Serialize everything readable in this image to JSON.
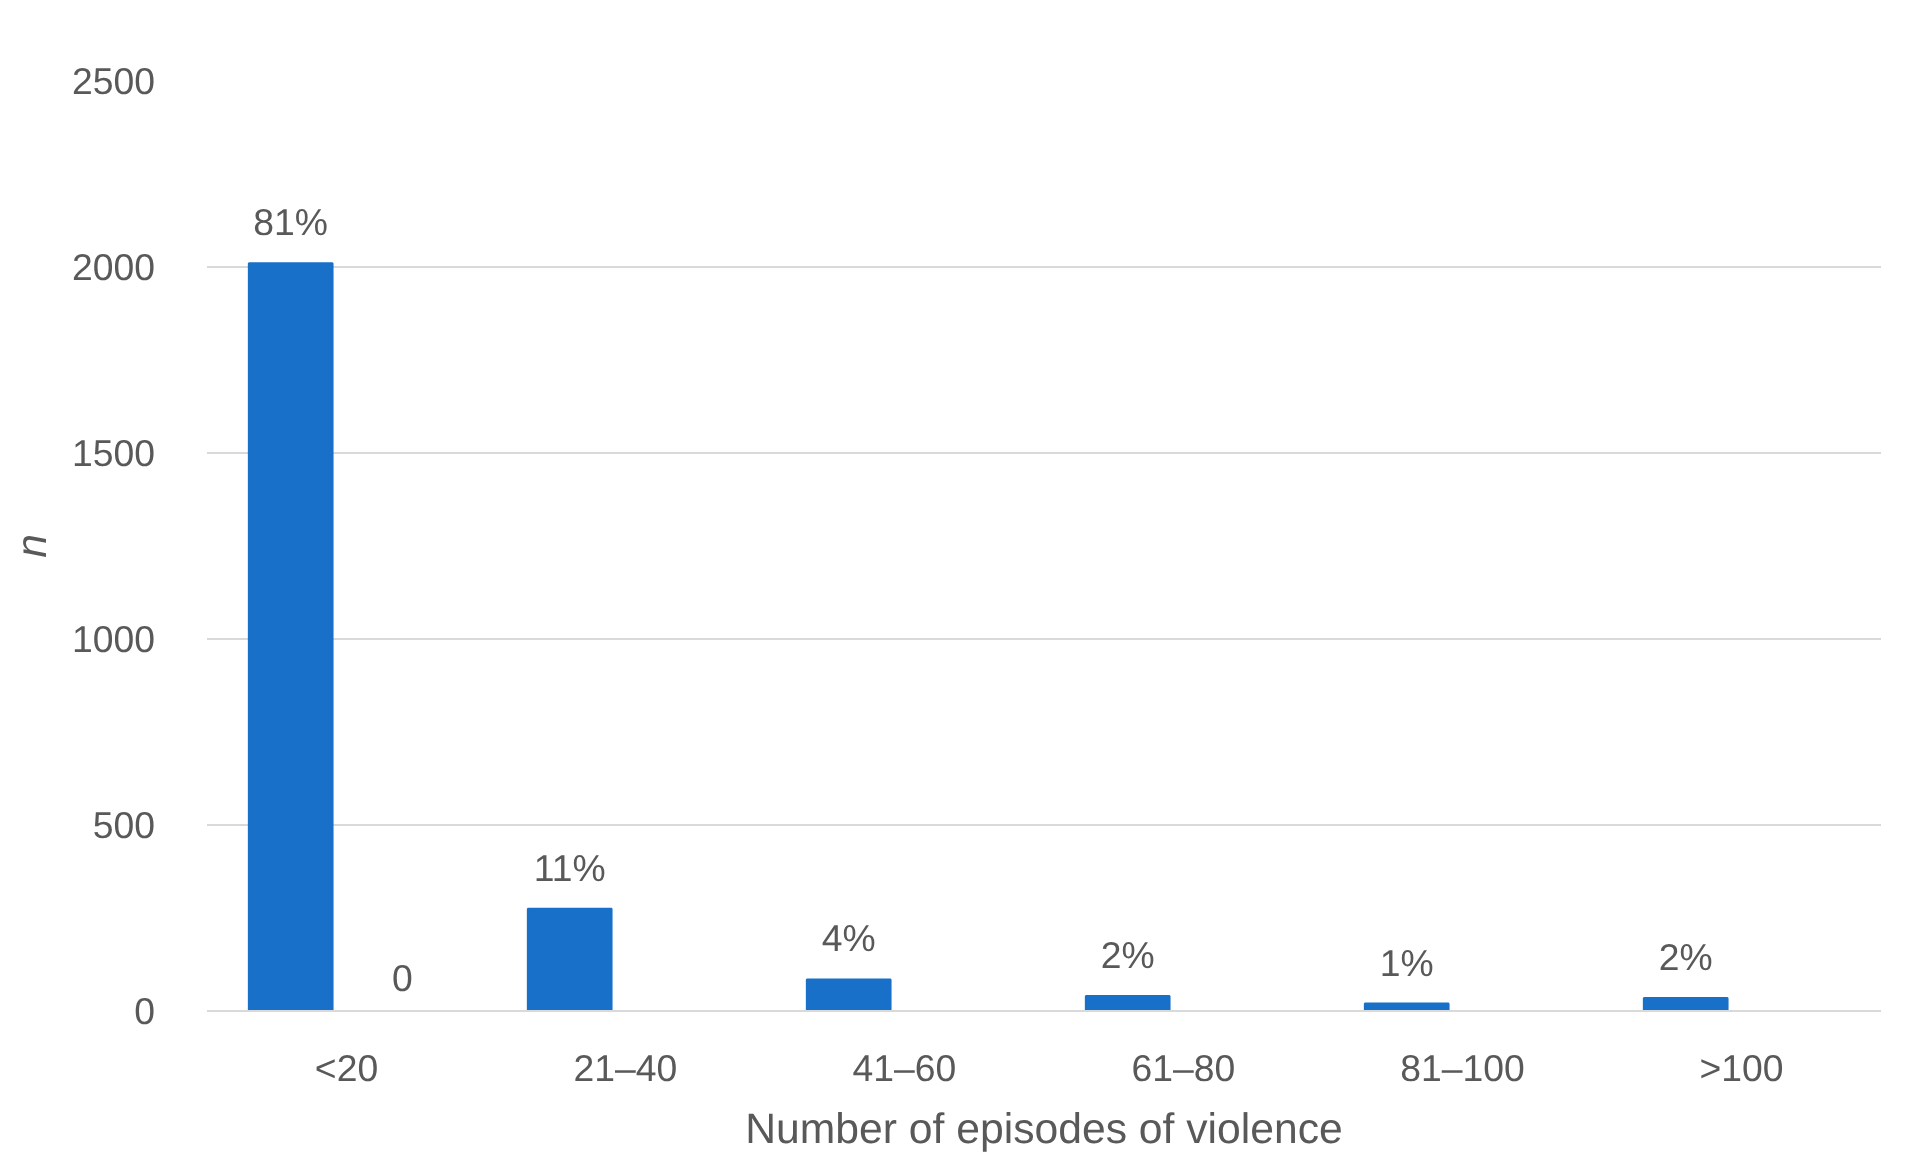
{
  "chart_data": {
    "type": "bar",
    "xlabel": "Number of episodes of violence",
    "ylabel": "n",
    "categories": [
      "<20",
      "21–40",
      "41–60",
      "61–80",
      "81–100",
      ">100"
    ],
    "series": [
      {
        "color": "#1870c8",
        "values": [
          2010,
          275,
          85,
          40,
          20,
          35
        ]
      },
      {
        "color": "#ed7d31",
        "values": [
          0,
          null,
          null,
          null,
          null,
          null
        ],
        "value_labels": [
          "0",
          null,
          null,
          null,
          null,
          null
        ]
      }
    ],
    "annotations": [
      "81%",
      "11%",
      "4%",
      "2%",
      "1%",
      "2%"
    ],
    "ylim": [
      0,
      2500
    ],
    "yticks": [
      0,
      500,
      1000,
      1500,
      2000,
      2500
    ],
    "grid": "y"
  }
}
